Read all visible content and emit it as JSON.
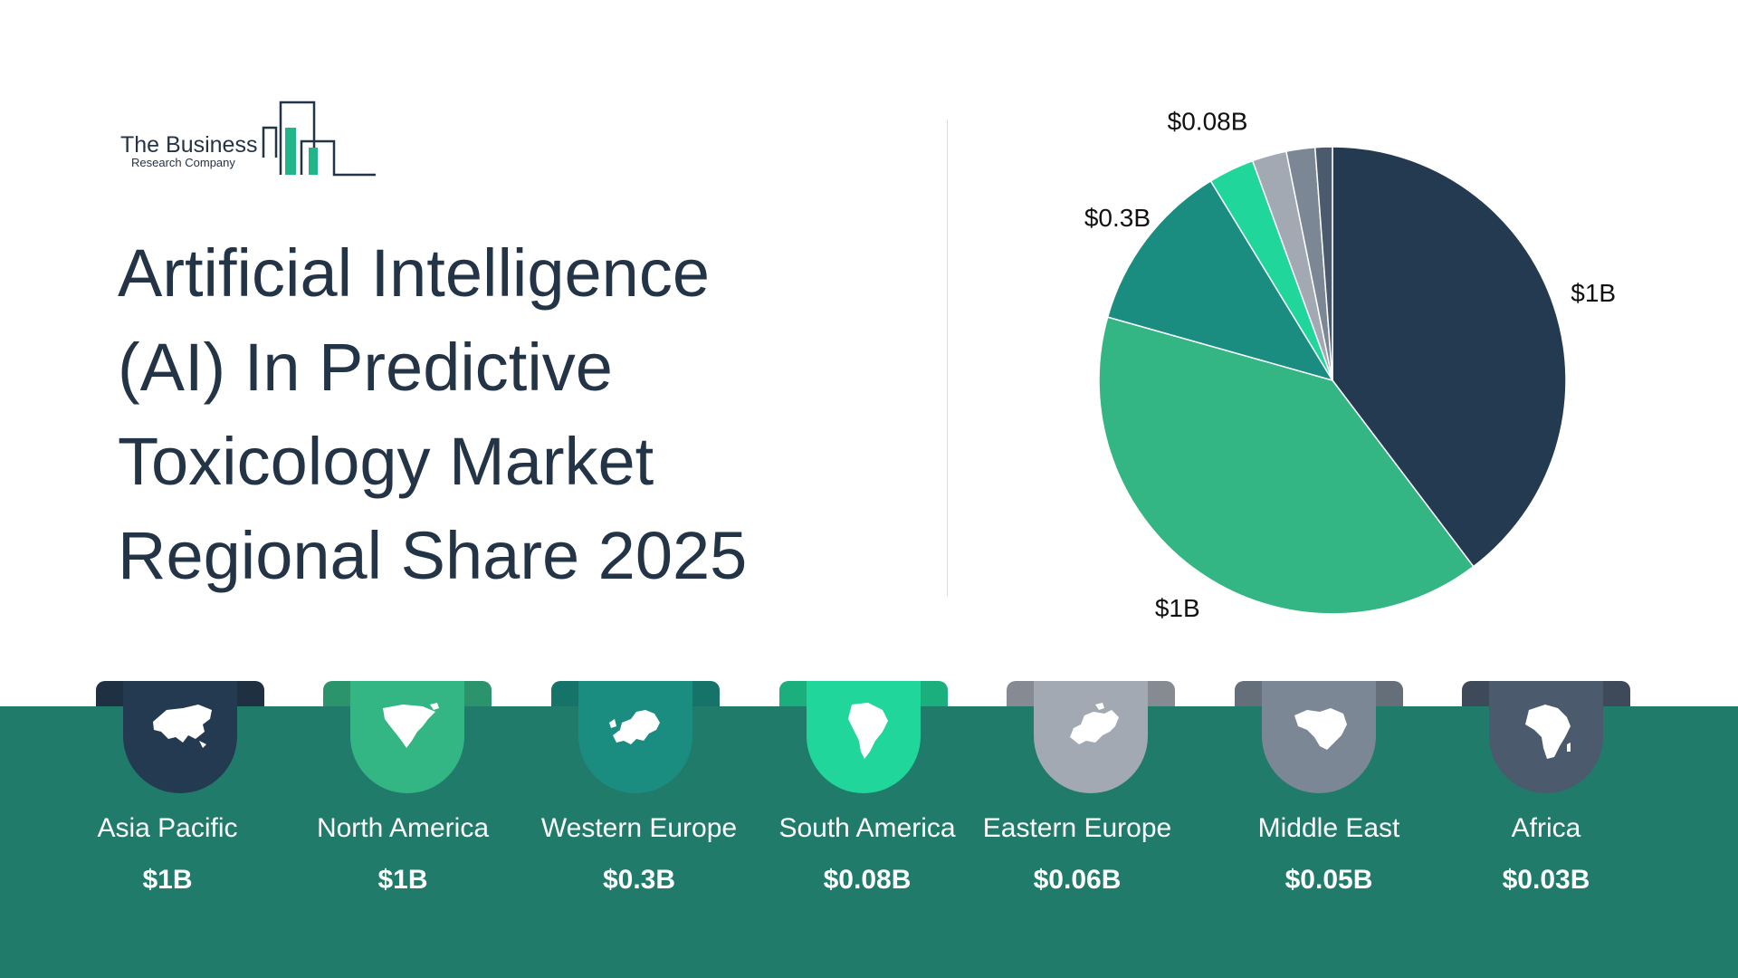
{
  "logo": {
    "line1": "The Business",
    "line2": "Research Company"
  },
  "title_lines": [
    "Artificial Intelligence",
    "(AI) In Predictive",
    "Toxicology Market",
    "Regional Share 2025"
  ],
  "colors": {
    "text": "#243447",
    "band": "#207b6a"
  },
  "regions": [
    {
      "name": "Asia Pacific",
      "value": "$1B",
      "color": "#243a50",
      "icon": "asia-map-icon"
    },
    {
      "name": "North America",
      "value": "$1B",
      "color": "#34b584",
      "icon": "north-america-map-icon"
    },
    {
      "name": "Western Europe",
      "value": "$0.3B",
      "color": "#1b8c80",
      "icon": "western-europe-map-icon"
    },
    {
      "name": "South America",
      "value": "$0.08B",
      "color": "#21d69a",
      "icon": "south-america-map-icon"
    },
    {
      "name": "Eastern Europe",
      "value": "$0.06B",
      "color": "#a3a9b3",
      "icon": "eastern-europe-map-icon"
    },
    {
      "name": "Middle East",
      "value": "$0.05B",
      "color": "#7b8795",
      "icon": "middle-east-map-icon"
    },
    {
      "name": "Africa",
      "value": "$0.03B",
      "color": "#4b5a6c",
      "icon": "africa-map-icon"
    }
  ],
  "chart_data": {
    "type": "pie",
    "title": "",
    "slices": [
      {
        "label": "Asia Pacific",
        "value": 1.0,
        "display": "$1B",
        "color": "#243a50"
      },
      {
        "label": "North America",
        "value": 1.0,
        "display": "$1B",
        "color": "#34b584"
      },
      {
        "label": "Western Europe",
        "value": 0.3,
        "display": "$0.3B",
        "color": "#1b8c80"
      },
      {
        "label": "South America",
        "value": 0.08,
        "display": "$0.08B",
        "color": "#21d69a"
      },
      {
        "label": "Eastern Europe",
        "value": 0.06,
        "display": "",
        "color": "#a3a9b3"
      },
      {
        "label": "Middle East",
        "value": 0.05,
        "display": "",
        "color": "#7b8795"
      },
      {
        "label": "Africa",
        "value": 0.03,
        "display": "",
        "color": "#4b5a6c"
      }
    ],
    "start_angle": "12 o'clock",
    "direction": "clockwise"
  }
}
